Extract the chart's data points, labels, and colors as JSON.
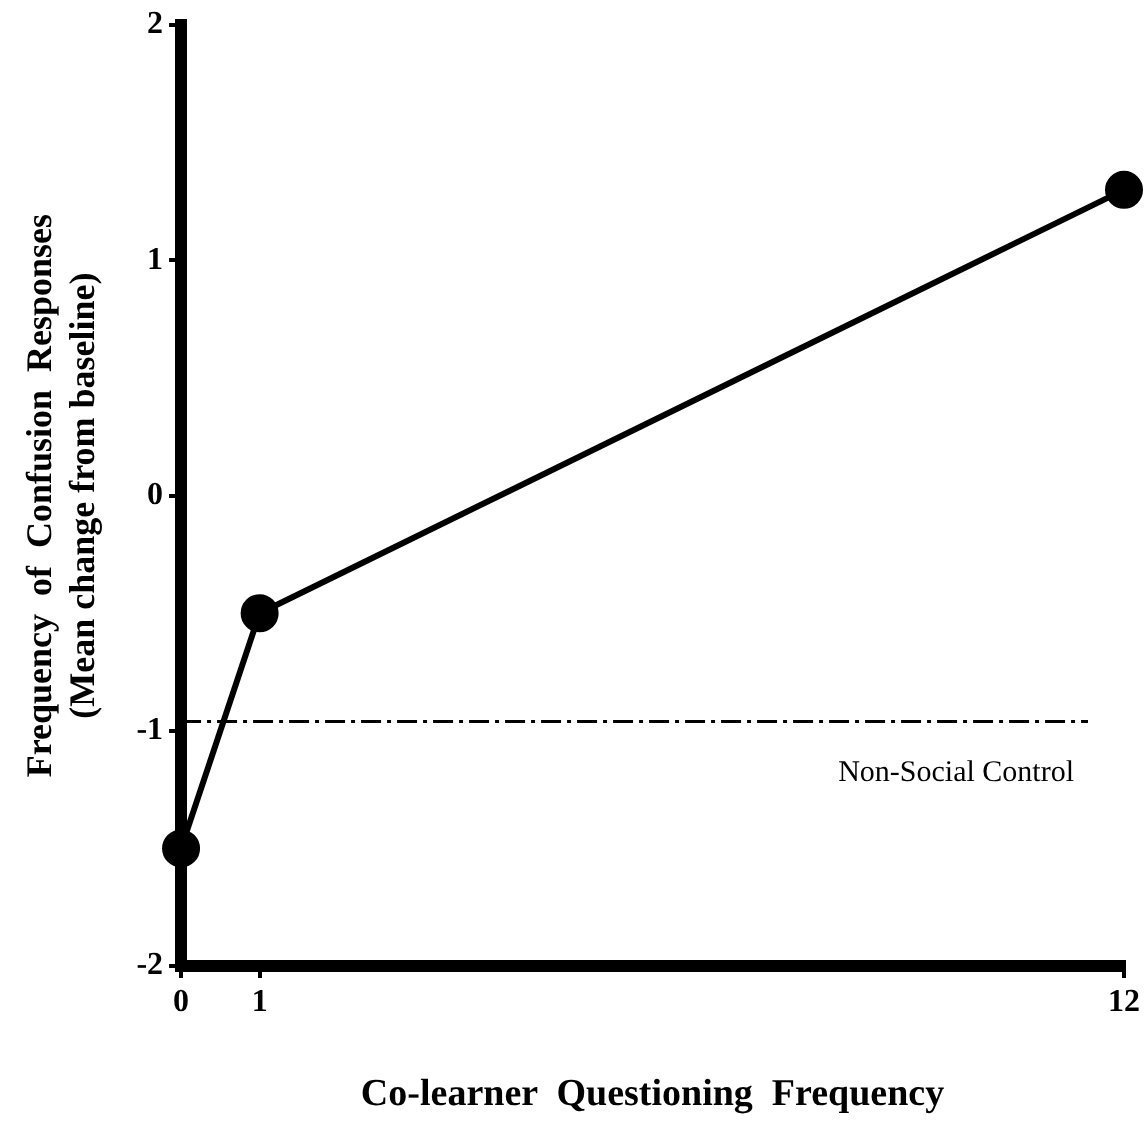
{
  "chart_data": {
    "type": "line",
    "xlabel": "Co-learner  Questioning  Frequency",
    "ylabel": "Frequency  of  Confusion  Responses",
    "subtitle": "(Mean change from baseline)",
    "x": [
      0,
      1,
      12
    ],
    "values": [
      -1.5,
      -0.5,
      1.3
    ],
    "color": "#000000",
    "xlim": [
      0,
      12
    ],
    "xticks": [
      0,
      1,
      12
    ],
    "ylim": [
      -2,
      2
    ],
    "yticks": [
      -2,
      -1,
      0,
      1,
      2
    ],
    "grid": false,
    "legend": false,
    "marker": "circle",
    "line_style": "solid",
    "ref_lines": [
      {
        "axis": "y",
        "value": -0.96,
        "label": "Non-Social Control",
        "line_style": "dashdot",
        "color": "#000000"
      }
    ]
  }
}
